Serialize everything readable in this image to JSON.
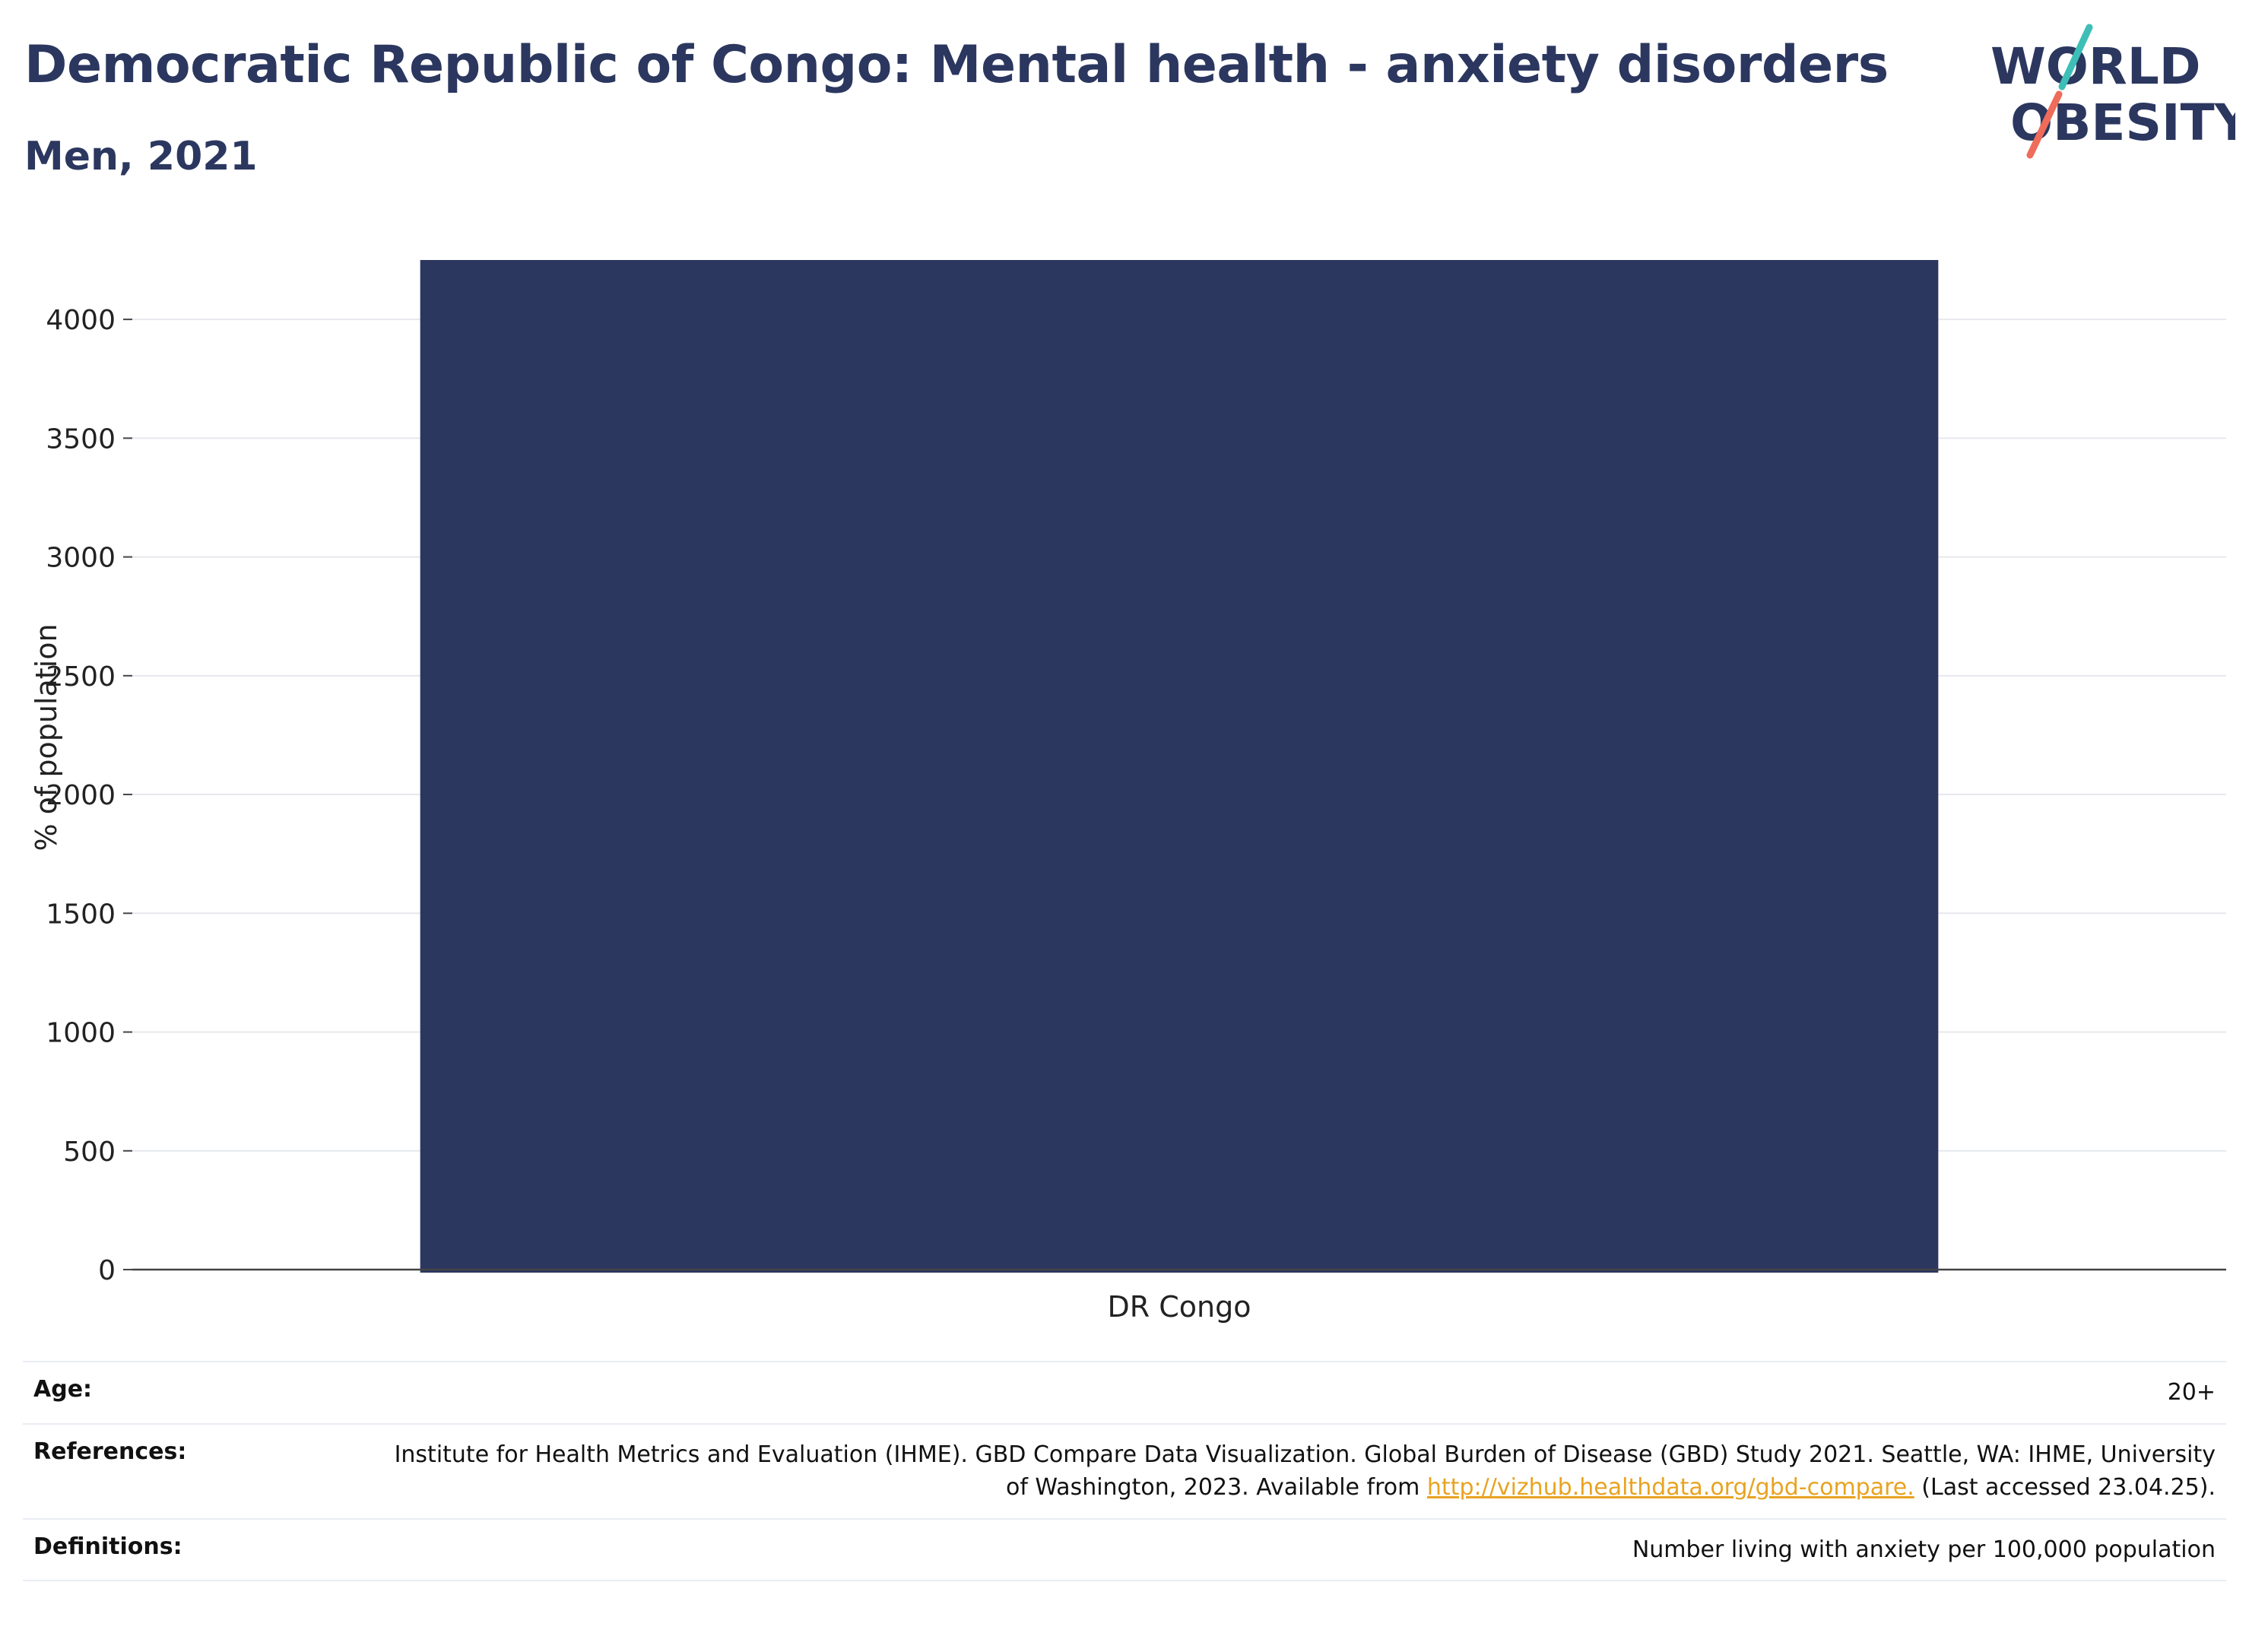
{
  "header": {
    "title": "Democratic Republic of Congo: Mental health - anxiety disorders",
    "subtitle": "Men, 2021"
  },
  "logo": {
    "line1": "WORLD",
    "line2": "OBESITY",
    "text_color": "#2b375f",
    "slash_color_top": "#3dbfb8",
    "slash_color_bottom": "#ef6b5a"
  },
  "chart_data": {
    "type": "bar",
    "categories": [
      "DR Congo"
    ],
    "values": [
      4250
    ],
    "ylabel": "% of population",
    "xlabel": "",
    "ylim": [
      0,
      4250
    ],
    "yticks": [
      0,
      500,
      1000,
      1500,
      2000,
      2500,
      3000,
      3500,
      4000
    ],
    "grid": true,
    "bar_color": "#2b375f"
  },
  "info": {
    "age_label": "Age:",
    "age_value": "20+",
    "references_label": "References:",
    "references_text_before": "Institute for Health Metrics and Evaluation (IHME). GBD Compare Data Visualization. Global Burden of Disease (GBD) Study 2021. Seattle, WA: IHME, University of Washington, 2023. Available from ",
    "references_link": "http://vizhub.healthdata.org/gbd-compare.",
    "references_text_after": " (Last accessed 23.04.25).",
    "definitions_label": "Definitions:",
    "definitions_value": "Number living with anxiety per 100,000 population"
  }
}
